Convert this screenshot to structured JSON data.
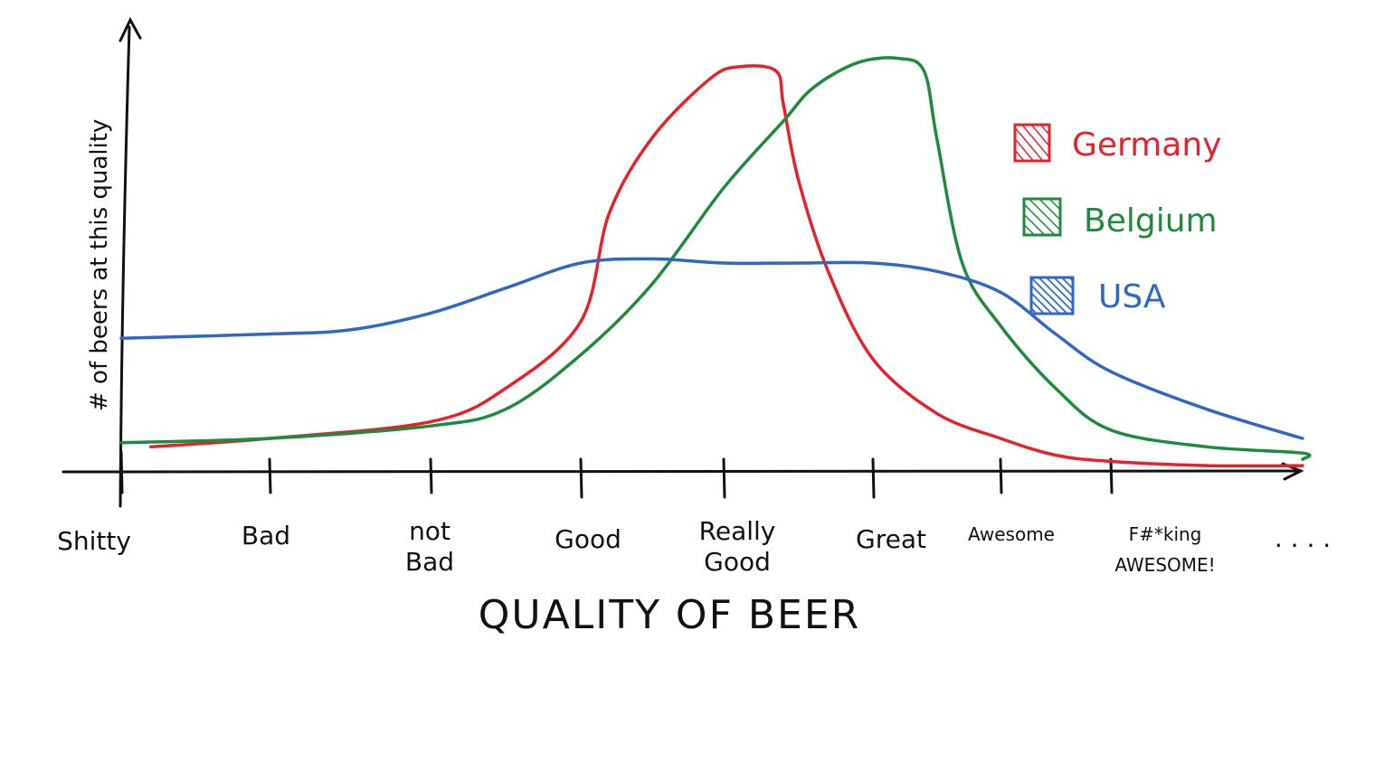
{
  "chart_data": {
    "type": "line",
    "title": "",
    "xlabel": "QUALITY OF BEER",
    "ylabel": "# of beers at this quality",
    "x_categories": [
      "Shitty",
      "Bad",
      "not Bad",
      "Good",
      "Really Good",
      "Great",
      "Awesome",
      "F#*king AWESOME!",
      ". . . ."
    ],
    "ylim": [
      0,
      100
    ],
    "grid": false,
    "legend_position": "top-right",
    "legend": [
      "Germany",
      "Belgium",
      "USA"
    ],
    "series": [
      {
        "name": "Germany",
        "color": "#e5212b",
        "points": [
          [
            0.2,
            6
          ],
          [
            1,
            8
          ],
          [
            2,
            12
          ],
          [
            2.5,
            20
          ],
          [
            3,
            36
          ],
          [
            3.2,
            62
          ],
          [
            3.5,
            80
          ],
          [
            3.9,
            94
          ],
          [
            4.1,
            97
          ],
          [
            4.35,
            96
          ],
          [
            4.4,
            88
          ],
          [
            4.5,
            70
          ],
          [
            4.7,
            48
          ],
          [
            5,
            27
          ],
          [
            5.5,
            14
          ],
          [
            6,
            8
          ],
          [
            6.5,
            4
          ],
          [
            7,
            2.5
          ],
          [
            7.5,
            1.5
          ],
          [
            8,
            1.5
          ]
        ]
      },
      {
        "name": "Belgium",
        "color": "#1e8a3c",
        "points": [
          [
            0,
            7
          ],
          [
            1,
            8
          ],
          [
            2,
            11
          ],
          [
            2.5,
            15
          ],
          [
            3,
            28
          ],
          [
            3.5,
            45
          ],
          [
            4,
            68
          ],
          [
            4.4,
            84
          ],
          [
            4.6,
            92
          ],
          [
            4.9,
            98
          ],
          [
            5.2,
            99
          ],
          [
            5.4,
            96
          ],
          [
            5.5,
            80
          ],
          [
            5.7,
            50
          ],
          [
            6,
            35
          ],
          [
            6.5,
            20
          ],
          [
            7,
            10
          ],
          [
            7.5,
            6
          ],
          [
            8,
            4.5
          ],
          [
            8.2,
            3
          ]
        ]
      },
      {
        "name": "USA",
        "color": "#2f67c4",
        "points": [
          [
            0,
            32
          ],
          [
            1,
            33
          ],
          [
            1.5,
            34
          ],
          [
            2,
            38
          ],
          [
            2.5,
            44
          ],
          [
            3,
            50
          ],
          [
            3.5,
            51
          ],
          [
            4,
            50
          ],
          [
            4.5,
            50
          ],
          [
            5,
            50
          ],
          [
            5.5,
            48
          ],
          [
            6,
            43
          ],
          [
            6.5,
            33
          ],
          [
            7,
            24
          ],
          [
            7.5,
            15
          ],
          [
            8,
            8
          ]
        ]
      }
    ]
  }
}
